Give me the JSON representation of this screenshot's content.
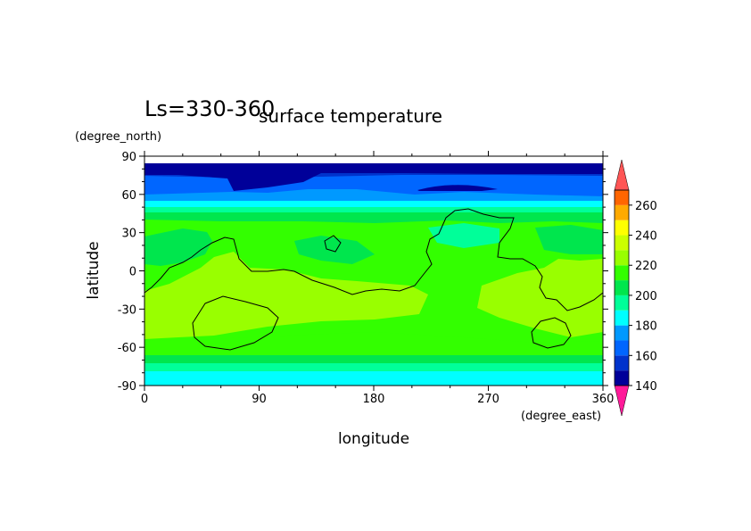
{
  "chart_data": {
    "type": "heatmap",
    "title": "surface temperature",
    "subtitle": "Ls=330-360",
    "xlabel": "longitude",
    "ylabel": "latitude",
    "x_units": "(degree_east)",
    "y_units": "(degree_north)",
    "xlim": [
      0,
      360
    ],
    "ylim": [
      -90,
      90
    ],
    "x_ticks": [
      "0",
      "90",
      "180",
      "270",
      "360"
    ],
    "y_ticks": [
      "90",
      "60",
      "30",
      "0",
      "-30",
      "-60",
      "-90"
    ],
    "x_tick_values": [
      0,
      90,
      180,
      270,
      360
    ],
    "y_tick_values": [
      90,
      60,
      30,
      0,
      -30,
      -60,
      -90
    ],
    "colorbar": {
      "levels": [
        140,
        150,
        160,
        170,
        180,
        190,
        200,
        210,
        220,
        230,
        240,
        250,
        260,
        270
      ],
      "tick_labels": [
        "140",
        "160",
        "180",
        "200",
        "220",
        "240",
        "260"
      ],
      "tick_values": [
        140,
        160,
        180,
        200,
        220,
        240,
        260
      ],
      "colors": [
        "#000099",
        "#0033cc",
        "#0066ff",
        "#0099ff",
        "#00ffff",
        "#00ff99",
        "#00e64d",
        "#33ff00",
        "#99ff00",
        "#ccff00",
        "#ffff00",
        "#ffaa00",
        "#ff6600",
        "#ff0000"
      ],
      "over_color": "#ff5555",
      "under_color": "#ff1a99"
    },
    "grid": false,
    "legend": "colorbar-right",
    "latitude_bands": [
      {
        "lat": [
          -90,
          -85
        ],
        "value_range": [
          175,
          180
        ]
      },
      {
        "lat": [
          -85,
          -80
        ],
        "value_range": [
          180,
          190
        ]
      },
      {
        "lat": [
          -80,
          -75
        ],
        "value_range": [
          190,
          200
        ]
      },
      {
        "lat": [
          -75,
          -68
        ],
        "value_range": [
          200,
          205
        ]
      },
      {
        "lat": [
          -68,
          -20
        ],
        "value_range": [
          205,
          225
        ]
      },
      {
        "lat": [
          -20,
          45
        ],
        "value_range": [
          205,
          225
        ]
      },
      {
        "lat": [
          45,
          55
        ],
        "value_range": [
          190,
          200
        ]
      },
      {
        "lat": [
          55,
          62
        ],
        "value_range": [
          170,
          190
        ]
      },
      {
        "lat": [
          62,
          75
        ],
        "value_range": [
          150,
          170
        ]
      },
      {
        "lat": [
          75,
          85
        ],
        "value_range": [
          140,
          150
        ]
      }
    ]
  }
}
